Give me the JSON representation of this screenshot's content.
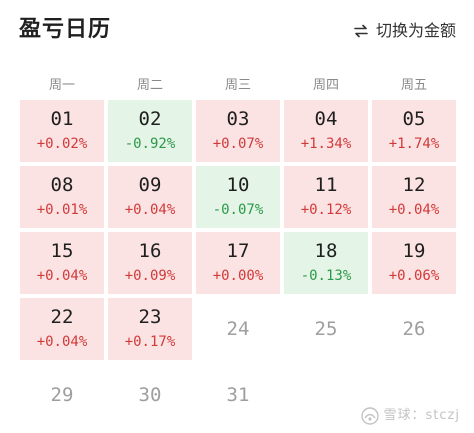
{
  "header": {
    "title": "盈亏日历",
    "switch_label": "切换为金额",
    "switch_icon": "swap-icon"
  },
  "weekdays": [
    "周一",
    "周二",
    "周三",
    "周四",
    "周五"
  ],
  "colors": {
    "gain_bg": "#fbe3e3",
    "loss_bg": "#e4f4e7",
    "gain_text": "#d23a3a",
    "loss_text": "#2b9a47"
  },
  "calendar": [
    {
      "day": "01",
      "pct": "+0.02%",
      "status": "up"
    },
    {
      "day": "02",
      "pct": "-0.92%",
      "status": "down"
    },
    {
      "day": "03",
      "pct": "+0.07%",
      "status": "up"
    },
    {
      "day": "04",
      "pct": "+1.34%",
      "status": "up"
    },
    {
      "day": "05",
      "pct": "+1.74%",
      "status": "up"
    },
    {
      "day": "08",
      "pct": "+0.01%",
      "status": "up"
    },
    {
      "day": "09",
      "pct": "+0.04%",
      "status": "up"
    },
    {
      "day": "10",
      "pct": "-0.07%",
      "status": "down"
    },
    {
      "day": "11",
      "pct": "+0.12%",
      "status": "up"
    },
    {
      "day": "12",
      "pct": "+0.04%",
      "status": "up"
    },
    {
      "day": "15",
      "pct": "+0.04%",
      "status": "up"
    },
    {
      "day": "16",
      "pct": "+0.09%",
      "status": "up"
    },
    {
      "day": "17",
      "pct": "+0.00%",
      "status": "up"
    },
    {
      "day": "18",
      "pct": "-0.13%",
      "status": "down"
    },
    {
      "day": "19",
      "pct": "+0.06%",
      "status": "up"
    },
    {
      "day": "22",
      "pct": "+0.04%",
      "status": "up"
    },
    {
      "day": "23",
      "pct": "+0.17%",
      "status": "up"
    },
    {
      "day": "24",
      "pct": "",
      "status": "empty"
    },
    {
      "day": "25",
      "pct": "",
      "status": "empty"
    },
    {
      "day": "26",
      "pct": "",
      "status": "empty"
    },
    {
      "day": "29",
      "pct": "",
      "status": "empty"
    },
    {
      "day": "30",
      "pct": "",
      "status": "empty"
    },
    {
      "day": "31",
      "pct": "",
      "status": "empty"
    }
  ],
  "watermark": {
    "text": "雪球：stczj",
    "logo_icon": "snowball-logo-icon"
  }
}
